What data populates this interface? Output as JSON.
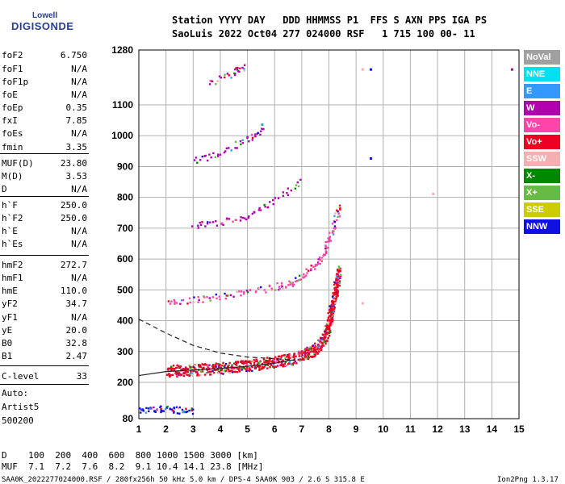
{
  "logo": {
    "top": "Lowell",
    "bottom": "DIGISONDE"
  },
  "header": {
    "line1": "Station YYYY DAY   DDD HHMMSS P1  FFS S AXN PPS IGA PS",
    "line2": "SaoLuis 2022 Oct04 277 024000 RSF   1 715 100 00- 11"
  },
  "params": [
    {
      "k": "foF2",
      "v": "6.750"
    },
    {
      "k": "foF1",
      "v": "N/A"
    },
    {
      "k": "foF1p",
      "v": "N/A"
    },
    {
      "k": "foE",
      "v": "N/A"
    },
    {
      "k": "foEp",
      "v": "0.35"
    },
    {
      "k": "fxI",
      "v": "7.85"
    },
    {
      "k": "foEs",
      "v": "N/A"
    },
    {
      "k": "fmin",
      "v": "3.35"
    },
    {
      "k": "MUF(D)",
      "v": "23.80"
    },
    {
      "k": "M(D)",
      "v": "3.53"
    },
    {
      "k": "D",
      "v": "N/A"
    },
    {
      "k": "h`F",
      "v": "250.0"
    },
    {
      "k": "h`F2",
      "v": "250.0"
    },
    {
      "k": "h`E",
      "v": "N/A"
    },
    {
      "k": "h`Es",
      "v": "N/A"
    },
    {
      "k": "hmF2",
      "v": "272.7"
    },
    {
      "k": "hmF1",
      "v": "N/A"
    },
    {
      "k": "hmE",
      "v": "110.0"
    },
    {
      "k": "yF2",
      "v": "34.7"
    },
    {
      "k": "yF1",
      "v": "N/A"
    },
    {
      "k": "yE",
      "v": "20.0"
    },
    {
      "k": "B0",
      "v": "32.8"
    },
    {
      "k": "B1",
      "v": "2.47"
    },
    {
      "k": "C-level",
      "v": "33"
    }
  ],
  "auto": {
    "line1": "Auto:",
    "line2": "Artist5",
    "line3": "500200"
  },
  "legend": [
    {
      "label": "NoVal",
      "color": "#a0a0a0"
    },
    {
      "label": "NNE",
      "color": "#00e0f0"
    },
    {
      "label": "E",
      "color": "#3399ff"
    },
    {
      "label": "W",
      "color": "#b000b0"
    },
    {
      "label": "Vo-",
      "color": "#ff44aa"
    },
    {
      "label": "Vo+",
      "color": "#ee0022"
    },
    {
      "label": "SSW",
      "color": "#f4b0b0"
    },
    {
      "label": "X-",
      "color": "#008800"
    },
    {
      "label": "X+",
      "color": "#66bb44"
    },
    {
      "label": "SSE",
      "color": "#cccc00"
    },
    {
      "label": "NNW",
      "color": "#1010e0"
    }
  ],
  "footer": {
    "line1": "D    100  200  400  600  800 1000 1500 3000 [km]",
    "line2": "MUF  7.1  7.2  7.6  8.2  9.1 10.4 14.1 23.8 [MHz]",
    "line3": "SAA0K_2022277024000.RSF / 280fx256h 50 kHz 5.0 km / DPS-4 SAA0K 903 / 2.6 S 315.8 E",
    "version": "Ion2Png 1.3.17"
  },
  "chart_data": {
    "type": "scatter",
    "x_ticks": [
      "1",
      "2",
      "3",
      "4",
      "5",
      "6",
      "7",
      "8",
      "9",
      "10",
      "11",
      "12",
      "13",
      "14",
      "15"
    ],
    "y_ticks": [
      "80",
      "200",
      "300",
      "400",
      "500",
      "600",
      "700",
      "800",
      "900",
      "1000",
      "1100",
      "1280"
    ],
    "xlim": [
      1,
      15
    ],
    "ylim": [
      80,
      1280
    ],
    "traces": [
      {
        "name": "O-trace 1st",
        "color": "#ee0022",
        "points": [
          [
            2,
            238
          ],
          [
            2.5,
            241
          ],
          [
            3,
            243
          ],
          [
            3.5,
            245
          ],
          [
            4,
            248
          ],
          [
            4.5,
            252
          ],
          [
            5,
            256
          ],
          [
            5.5,
            262
          ],
          [
            6,
            268
          ],
          [
            6.5,
            276
          ],
          [
            7,
            288
          ],
          [
            7.3,
            300
          ],
          [
            7.6,
            320
          ],
          [
            7.8,
            345
          ],
          [
            7.95,
            380
          ],
          [
            8.05,
            420
          ],
          [
            8.15,
            470
          ],
          [
            8.25,
            520
          ],
          [
            8.35,
            570
          ]
        ]
      },
      {
        "name": "O-trace 2nd",
        "color": "#ff44aa",
        "points": [
          [
            2,
            465
          ],
          [
            3,
            470
          ],
          [
            4,
            480
          ],
          [
            5,
            495
          ],
          [
            6,
            512
          ],
          [
            6.5,
            522
          ],
          [
            7,
            545
          ],
          [
            7.5,
            580
          ],
          [
            7.8,
            620
          ],
          [
            8,
            670
          ],
          [
            8.2,
            720
          ],
          [
            8.35,
            770
          ]
        ]
      },
      {
        "name": "O-trace 3rd",
        "color": "#b000b0",
        "points": [
          [
            3,
            710
          ],
          [
            4,
            720
          ],
          [
            5,
            745
          ],
          [
            6,
            790
          ],
          [
            7,
            860
          ]
        ]
      },
      {
        "name": "O-trace 4th",
        "color": "#b000b0",
        "points": [
          [
            3,
            920
          ],
          [
            4,
            950
          ],
          [
            5,
            990
          ],
          [
            5.6,
            1020
          ]
        ]
      },
      {
        "name": "O-trace 5th",
        "color": "#b000b0",
        "points": [
          [
            3.5,
            1170
          ],
          [
            4.5,
            1210
          ],
          [
            4.9,
            1230
          ]
        ]
      },
      {
        "name": "E-layer",
        "color": "#1010e0",
        "points": [
          [
            1,
            110
          ],
          [
            1.5,
            112
          ],
          [
            2,
            115
          ],
          [
            2.5,
            110
          ],
          [
            3,
            108
          ]
        ]
      },
      {
        "name": "Profile solid",
        "style": "solid",
        "points": [
          [
            1,
            222
          ],
          [
            2,
            235
          ],
          [
            3,
            240
          ],
          [
            4,
            245
          ],
          [
            5,
            252
          ],
          [
            6,
            262
          ],
          [
            6.6,
            272
          ],
          [
            6.75,
            272
          ]
        ]
      },
      {
        "name": "Profile dashed",
        "style": "dashed",
        "points": [
          [
            1,
            405
          ],
          [
            2,
            360
          ],
          [
            3,
            320
          ],
          [
            4,
            295
          ],
          [
            5,
            282
          ],
          [
            6,
            277
          ],
          [
            6.75,
            272
          ]
        ]
      }
    ]
  }
}
